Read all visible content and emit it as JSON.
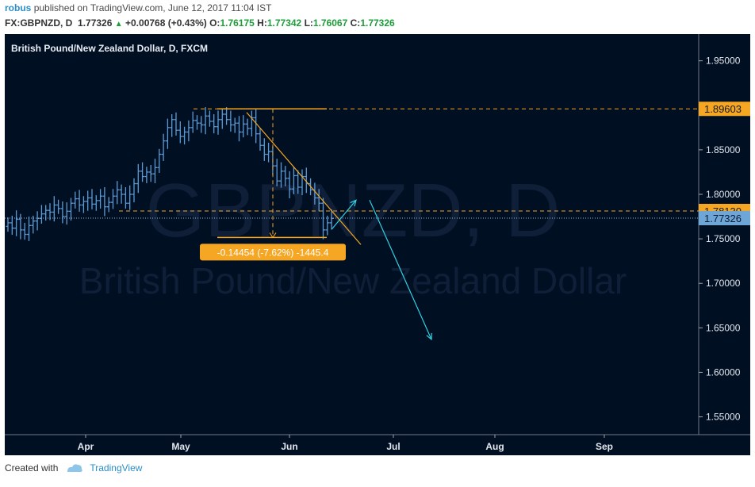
{
  "header": {
    "user": "robus",
    "published": "published on TradingView.com, June 12, 2017 11:04 IST",
    "symbol": "FX:GBPNZD, D",
    "last": "1.77326",
    "change": "+0.00768 (+0.43%)",
    "o_label": "O:",
    "o_value": "1.76175",
    "h_label": "H:",
    "h_value": "1.77342",
    "l_label": "L:",
    "l_value": "1.76067",
    "c_label": "C:",
    "c_value": "1.77326"
  },
  "footer": {
    "created_with": "Created with",
    "brand": "TradingView"
  },
  "colors": {
    "background": "#010f23",
    "bars": "#5b9bd5",
    "orange": "#f5a623",
    "arrow": "#2fd0e0",
    "price_badge": "#6ea6d8"
  },
  "chart_data": {
    "type": "ohlc-bar",
    "title": "British Pound/New Zealand Dollar, D, FXCM",
    "watermark_symbol": "GBPNZD, D",
    "watermark_name": "British Pound/New Zealand Dollar",
    "y_ticks": [
      "1.95000",
      "1.90000",
      "1.85000",
      "1.80000",
      "1.75000",
      "1.70000",
      "1.65000",
      "1.60000",
      "1.55000"
    ],
    "y_tick_values": [
      1.95,
      1.9,
      1.85,
      1.8,
      1.75,
      1.7,
      1.65,
      1.6,
      1.55
    ],
    "x_labels": [
      "Apr",
      "May",
      "Jun",
      "Jul",
      "Aug",
      "Sep"
    ],
    "ylim": [
      1.53,
      1.98
    ],
    "bars_close": [
      1.768,
      1.762,
      1.772,
      1.76,
      1.755,
      1.765,
      1.77,
      1.773,
      1.778,
      1.782,
      1.78,
      1.788,
      1.784,
      1.775,
      1.781,
      1.79,
      1.795,
      1.788,
      1.792,
      1.796,
      1.789,
      1.793,
      1.798,
      1.786,
      1.791,
      1.798,
      1.805,
      1.8,
      1.79,
      1.8,
      1.812,
      1.826,
      1.82,
      1.825,
      1.823,
      1.83,
      1.845,
      1.86,
      1.875,
      1.884,
      1.872,
      1.865,
      1.87,
      1.875,
      1.883,
      1.88,
      1.878,
      1.888,
      1.882,
      1.876,
      1.884,
      1.89,
      1.884,
      1.878,
      1.88,
      1.87,
      1.879,
      1.874,
      1.886,
      1.868,
      1.855,
      1.845,
      1.848,
      1.832,
      1.815,
      1.826,
      1.818,
      1.806,
      1.821,
      1.808,
      1.82,
      1.812,
      1.805,
      1.796,
      1.79,
      1.76,
      1.768,
      1.773
    ],
    "price_labels": [
      {
        "value": 1.89603,
        "text": "1.89603",
        "style": "orange"
      },
      {
        "value": 1.7813,
        "text": "1.78130",
        "style": "orange"
      },
      {
        "value": 1.77326,
        "text": "1.77326",
        "style": "current"
      }
    ],
    "measure_label": "-0.14454 (-7.62%) -1445.4",
    "measure_from": 1.89603,
    "measure_to": 1.7515
  }
}
